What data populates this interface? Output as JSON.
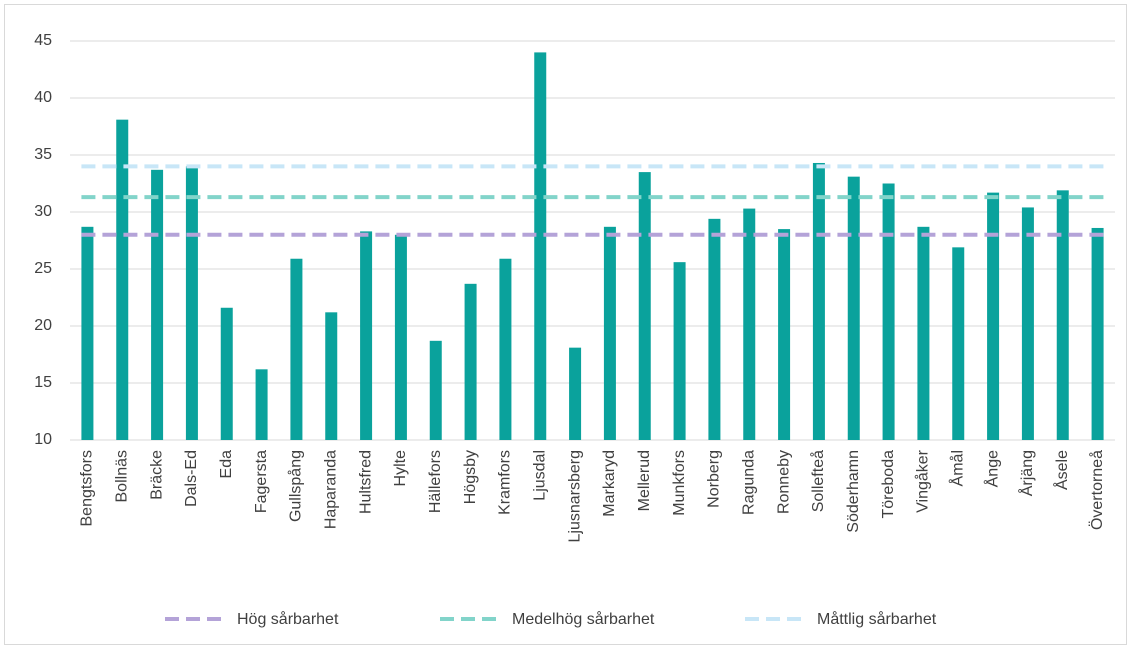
{
  "chart_data": {
    "type": "bar",
    "categories": [
      "Bengtsfors",
      "Bollnäs",
      "Bräcke",
      "Dals-Ed",
      "Eda",
      "Fagersta",
      "Gullspång",
      "Haparanda",
      "Hultsfred",
      "Hylte",
      "Hällefors",
      "Högsby",
      "Kramfors",
      "Ljusdal",
      "Ljusnarsberg",
      "Markaryd",
      "Mellerud",
      "Munkfors",
      "Norberg",
      "Ragunda",
      "Ronneby",
      "Sollefteå",
      "Söderhamn",
      "Töreboda",
      "Vingåker",
      "Åmål",
      "Ånge",
      "Årjäng",
      "Åsele",
      "Övertorneå"
    ],
    "values": [
      28.7,
      38.1,
      33.7,
      34.0,
      21.6,
      16.2,
      25.9,
      21.2,
      28.3,
      28.0,
      18.7,
      23.7,
      25.9,
      44.0,
      18.1,
      28.7,
      33.5,
      25.6,
      29.4,
      30.3,
      28.5,
      34.3,
      33.1,
      32.5,
      28.7,
      26.9,
      31.7,
      30.4,
      31.9,
      28.6
    ],
    "color": "#0aa29c",
    "reference_lines": [
      {
        "name": "Hög sårbarhet",
        "color": "#b4a3d8",
        "value": 28
      },
      {
        "name": "Medelhög sårbarhet",
        "color": "#82d4ca",
        "value": 31.3
      },
      {
        "name": "Måttlig sårbarhet",
        "color": "#c8e6f7",
        "value": 34
      }
    ],
    "ylim": [
      10,
      45
    ],
    "yticks": [
      10,
      15,
      20,
      25,
      30,
      35,
      40,
      45
    ],
    "grid": true,
    "legend": "bottom"
  }
}
